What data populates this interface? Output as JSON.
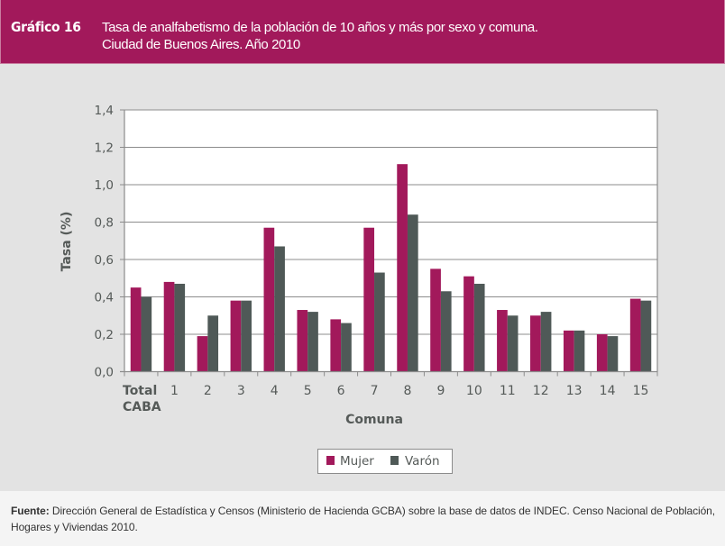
{
  "header": {
    "label": "Gráfico 16",
    "title_line1": "Tasa de analfabetismo de la población de 10 años y más por sexo y comuna.",
    "title_line2": "Ciudad de Buenos Aires. Año 2010"
  },
  "footer": {
    "source_label": "Fuente:",
    "source_text": " Dirección General de Estadística y Censos (Ministerio de Hacienda GCBA) sobre la base de datos de INDEC. Censo Nacional de Población, Hogares y Viviendas 2010."
  },
  "colors": {
    "mujer": "#a2195b",
    "varon": "#4f5957",
    "header": "#a2195b",
    "background": "#e3e3e3"
  },
  "chart_data": {
    "type": "bar",
    "title": "Tasa de analfabetismo de la población de 10 años y más por sexo y comuna. Ciudad de Buenos Aires. Año 2010",
    "xlabel": "Comuna",
    "ylabel": "Tasa (%)",
    "ylim": [
      0,
      1.4
    ],
    "yticks": [
      "0,0",
      "0,2",
      "0,4",
      "0,6",
      "0,8",
      "1,0",
      "1,2",
      "1,4"
    ],
    "ytick_values": [
      0,
      0.2,
      0.4,
      0.6,
      0.8,
      1.0,
      1.2,
      1.4
    ],
    "grid": true,
    "legend_position": "bottom-center",
    "categories": [
      "Total CABA",
      "1",
      "2",
      "3",
      "4",
      "5",
      "6",
      "7",
      "8",
      "9",
      "10",
      "11",
      "12",
      "13",
      "14",
      "15"
    ],
    "series": [
      {
        "name": "Mujer",
        "color": "#a2195b",
        "values": [
          0.45,
          0.48,
          0.19,
          0.38,
          0.77,
          0.33,
          0.28,
          0.77,
          1.11,
          0.55,
          0.51,
          0.33,
          0.3,
          0.22,
          0.2,
          0.39
        ]
      },
      {
        "name": "Varón",
        "color": "#4f5957",
        "values": [
          0.4,
          0.47,
          0.3,
          0.38,
          0.67,
          0.32,
          0.26,
          0.53,
          0.84,
          0.43,
          0.47,
          0.3,
          0.32,
          0.22,
          0.19,
          0.38
        ]
      }
    ]
  }
}
